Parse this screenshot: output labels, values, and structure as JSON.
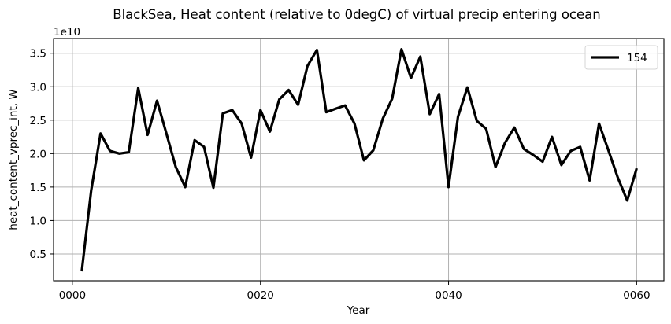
{
  "chart_data": {
    "type": "line",
    "title": "BlackSea, Heat content (relative to 0degC) of virtual precip entering ocean",
    "xlabel": "Year",
    "ylabel": "heat_content_vprec_int, W",
    "y_offset_label": "1e10",
    "x_tick_labels": [
      "0000",
      "0020",
      "0040",
      "0060"
    ],
    "x_ticks": [
      0,
      20,
      40,
      60
    ],
    "y_tick_labels": [
      "0.5",
      "1.0",
      "1.5",
      "2.0",
      "2.5",
      "3.0",
      "3.5"
    ],
    "y_ticks": [
      0.5,
      1.0,
      1.5,
      2.0,
      2.5,
      3.0,
      3.5
    ],
    "xlim": [
      -2.0,
      62.9
    ],
    "ylim": [
      0.1,
      3.72
    ],
    "grid": true,
    "legend_position": "upper right",
    "series": [
      {
        "name": "154",
        "color": "#000000",
        "x": [
          1,
          2,
          3,
          4,
          5,
          6,
          7,
          8,
          9,
          10,
          11,
          12,
          13,
          14,
          15,
          16,
          17,
          18,
          19,
          20,
          21,
          22,
          23,
          24,
          25,
          26,
          27,
          28,
          29,
          30,
          31,
          32,
          33,
          34,
          35,
          36,
          37,
          38,
          39,
          40,
          41,
          42,
          43,
          44,
          45,
          46,
          47,
          48,
          49,
          50,
          51,
          52,
          53,
          54,
          55,
          56,
          57,
          58,
          59,
          60
        ],
        "values": [
          0.24,
          1.45,
          2.3,
          2.04,
          2.0,
          2.02,
          2.98,
          2.28,
          2.79,
          2.3,
          1.8,
          1.5,
          2.2,
          2.1,
          1.49,
          2.6,
          2.65,
          2.45,
          1.94,
          2.65,
          2.33,
          2.81,
          2.95,
          2.73,
          3.31,
          3.55,
          2.62,
          2.67,
          2.72,
          2.45,
          1.9,
          2.05,
          2.52,
          2.82,
          3.56,
          3.13,
          3.45,
          2.59,
          2.89,
          1.5,
          2.55,
          2.99,
          2.49,
          2.37,
          1.8,
          2.16,
          2.39,
          2.07,
          1.98,
          1.88,
          2.25,
          1.83,
          2.04,
          2.1,
          1.6,
          2.45,
          2.05,
          1.64,
          1.3,
          1.78
        ]
      }
    ]
  }
}
